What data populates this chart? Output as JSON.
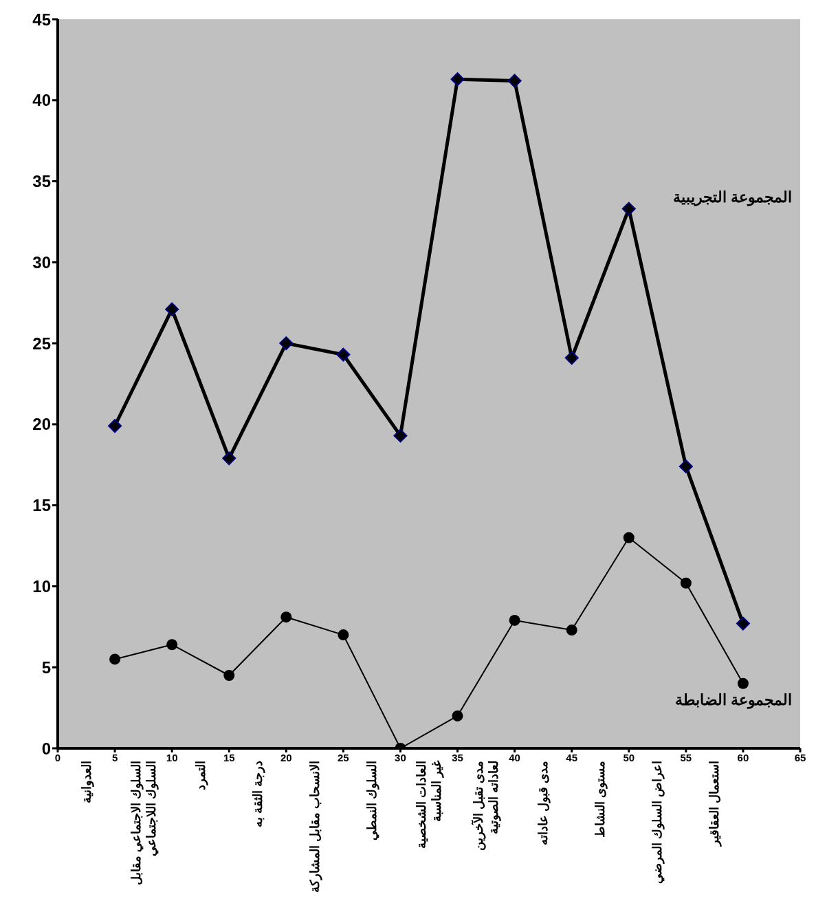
{
  "chart_data": {
    "type": "line",
    "x": [
      5,
      10,
      15,
      20,
      25,
      30,
      35,
      40,
      45,
      50,
      55,
      60
    ],
    "series": [
      {
        "name": "المجموعة التجريبية",
        "color": "#000000",
        "marker": "diamond",
        "values": [
          19.9,
          27.1,
          17.9,
          25.0,
          24.3,
          19.3,
          41.3,
          41.2,
          24.1,
          33.3,
          17.4,
          7.7
        ]
      },
      {
        "name": "المجموعة الضابطة",
        "color": "#000000",
        "marker": "circle",
        "values": [
          5.5,
          6.4,
          4.5,
          8.1,
          7.0,
          0,
          2.0,
          7.9,
          7.3,
          13.0,
          10.2,
          4.0
        ]
      }
    ],
    "xlim": [
      0,
      65
    ],
    "xticks": [
      0,
      5,
      10,
      15,
      20,
      25,
      30,
      35,
      40,
      45,
      50,
      55,
      60,
      65
    ],
    "ylim": [
      0,
      45
    ],
    "yticks": [
      0,
      5,
      10,
      15,
      20,
      25,
      30,
      35,
      40,
      45
    ],
    "grid": false,
    "legend": false,
    "line_style": "solid",
    "annotations": [
      "العدوانية",
      "السلوك الاجتماعي مقابل السلوك اللاجتماعي",
      "التمرد",
      "درجة الثقة به",
      "الانسحاب مقابل المشاركة",
      "السلوك النمطي",
      "العادات الشخصية غير المناسبة",
      "مدى تقبل الآخرين لعاداته الصوتية",
      "مدى قبول عاداته",
      "مستوى النشاط",
      "اعراض السلوك المرضي",
      "استعمال العقاقير"
    ]
  }
}
